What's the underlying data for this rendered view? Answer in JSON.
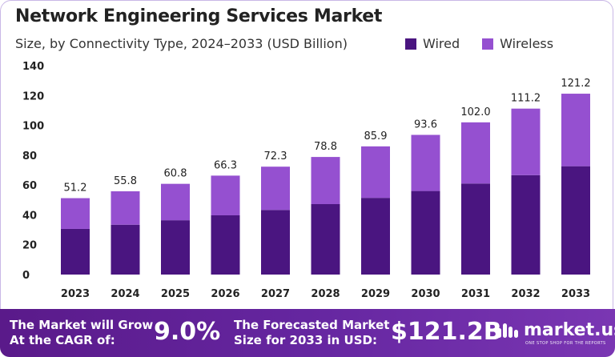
{
  "header": {
    "title": "Network Engineering Services Market",
    "subtitle": "Size, by Connectivity  Type, 2024–2033 (USD Billion)"
  },
  "legend": [
    {
      "label": "Wired",
      "color": "#4a1580"
    },
    {
      "label": "Wireless",
      "color": "#9550d0"
    }
  ],
  "chart_data": {
    "type": "bar",
    "stacked": true,
    "categories": [
      "2023",
      "2024",
      "2025",
      "2026",
      "2027",
      "2028",
      "2029",
      "2030",
      "2031",
      "2032",
      "2033"
    ],
    "series": [
      {
        "name": "Wired",
        "color": "#4a1580",
        "values": [
          30.6,
          33.4,
          36.4,
          39.7,
          43.3,
          47.2,
          51.4,
          56.0,
          61.0,
          66.6,
          72.6
        ]
      },
      {
        "name": "Wireless",
        "color": "#9550d0",
        "values": [
          20.6,
          22.4,
          24.4,
          26.6,
          29.0,
          31.6,
          34.5,
          37.6,
          41.0,
          44.6,
          48.6
        ]
      }
    ],
    "totals_labels": [
      "51.2",
      "55.8",
      "60.8",
      "66.3",
      "72.3",
      "78.8",
      "85.9",
      "93.6",
      "102.0",
      "111.2",
      "121.2"
    ],
    "totals": [
      51.2,
      55.8,
      60.8,
      66.3,
      72.3,
      78.8,
      85.9,
      93.6,
      102.0,
      111.2,
      121.2
    ],
    "yticks": [
      0,
      20,
      40,
      60,
      80,
      100,
      120,
      140
    ],
    "ylim": [
      0,
      140
    ],
    "title": "Network Engineering Services Market",
    "xlabel": "",
    "ylabel": "",
    "grid": false,
    "legend_position": "top-right"
  },
  "footer": {
    "cagr_text_line1": "The Market will Grow",
    "cagr_text_line2": "At the CAGR of:",
    "cagr_value": "9.0%",
    "forecast_text_line1": "The Forecasted Market",
    "forecast_text_line2": "Size for 2033 in USD:",
    "forecast_value": "$121.2B",
    "logo_text": "market.us",
    "logo_tagline": "ONE STOP SHOP FOR THE REPORTS",
    "background_color": "#6526a0"
  }
}
